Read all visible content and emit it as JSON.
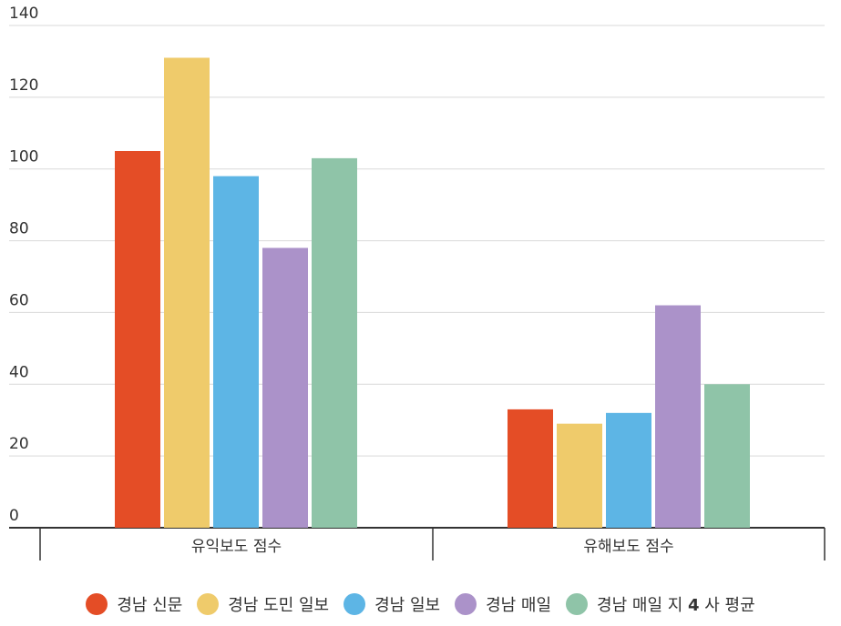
{
  "chart_data": {
    "type": "bar",
    "categories": [
      "유익보도 점수",
      "유해보도 점수"
    ],
    "series": [
      {
        "name": "경남 신문",
        "color": "#e44d26",
        "values": [
          105,
          33
        ]
      },
      {
        "name": "경남 도민 일보",
        "color": "#efcb6b",
        "values": [
          131,
          29
        ]
      },
      {
        "name": "경남 일보",
        "color": "#5db5e5",
        "values": [
          98,
          32
        ]
      },
      {
        "name": "경남 매일",
        "color": "#ab92c9",
        "values": [
          78,
          62
        ]
      },
      {
        "name": "경남 매일 지 4 사 평균",
        "color": "#8fc4a8",
        "values": [
          103,
          40
        ]
      }
    ],
    "ylim": [
      0,
      140
    ],
    "yticks": [
      "0",
      "20",
      "40",
      "60",
      "80",
      "100",
      "120",
      "140"
    ],
    "grid": true,
    "legend_position": "bottom",
    "title": "",
    "xlabel": "",
    "ylabel": ""
  }
}
